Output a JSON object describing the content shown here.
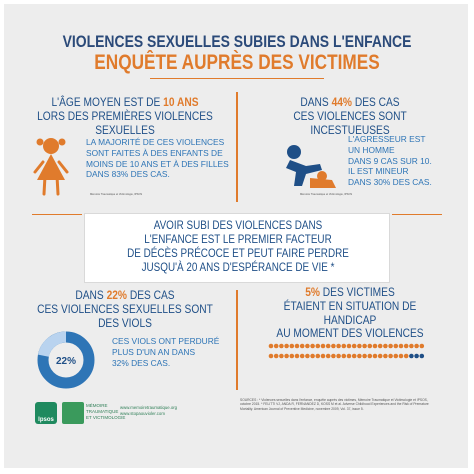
{
  "header": {
    "line1": "VIOLENCES SEXUELLES SUBIES DANS L'ENFANCE",
    "line2": "ENQUÊTE AUPRÈS DES VICTIMES"
  },
  "q1": {
    "title_a": "L'ÂGE MOYEN EST DE ",
    "title_hl": "10 ANS",
    "title_b": "LORS DES PREMIÈRES VIOLENCES SEXUELLES",
    "body": [
      "LA MAJORITÉ DE CES VIOLENCES",
      "SONT FAITES À DES ENFANTS DE",
      "MOINS DE 10 ANS ET À DES FILLES",
      "DANS 83% DES CAS."
    ],
    "ref": "Mémoire Traumatique et Victimologie, IPSOS"
  },
  "q2": {
    "title_a": "DANS ",
    "title_hl": "44%",
    "title_c": " DES CAS",
    "title_b": "CES VIOLENCES SONT INCESTUEUSES",
    "body": [
      "L'AGRESSEUR EST",
      "UN HOMME",
      "DANS 9 CAS SUR 10.",
      "IL EST MINEUR",
      "DANS 30% DES CAS."
    ],
    "ref": "Mémoire Traumatique et Victimologie, IPSOS"
  },
  "center": {
    "lines": [
      "AVOIR SUBI DES VIOLENCES DANS",
      "L'ENFANCE EST LE PREMIER FACTEUR",
      "DE DÉCÈS PRÉCOCE ET PEUT FAIRE PERDRE",
      "JUSQU'À 20 ANS D'ESPÉRANCE DE VIE *"
    ]
  },
  "q3": {
    "title_a": "DANS ",
    "title_hl": "22%",
    "title_c": " DES CAS",
    "title_b": "CES VIOLENCES SEXUELLES SONT DES VIOLS",
    "donut_label": "22%",
    "donut_value": 0.22,
    "body": [
      "CES VIOLS ONT PERDURÉ",
      "PLUS D'UN AN DANS",
      "32% DES CAS."
    ]
  },
  "q4": {
    "title_hl": "5%",
    "title_a": " DES VICTIMES",
    "title_b": "ÉTAIENT EN SITUATION DE HANDICAP",
    "title_c": "AU MOMENT DES VIOLENCES",
    "dots_total": 60,
    "dots_highlight": 3
  },
  "footer": {
    "ipsos": "Ipsos",
    "mt": [
      "MÉMOIRE",
      "TRAUMATIQUE",
      "ET VICTIMOLOGIE"
    ],
    "urls": [
      "www.memoiretraumatique.org",
      "www.stopaouvioler.com"
    ],
    "sources": "SOURCES : * Violences sexuelles dans l'enfance, enquête auprès des victimes, Mémoire Traumatique et Victimologie et IPSOS, octobre 2015. * FELITTI VJ, ANDA R, FERNANDEZ D, KOSS M et al. Adverse Childhood Experiences and the Risk of Premature Mortality. American Journal of Preventive Medicine, novembre 2009, Vol. 37, issue 5."
  },
  "colors": {
    "orange": "#e07b2c",
    "blue": "#1f4f87",
    "lightblue": "#2e75b6",
    "green": "#2f7f57"
  }
}
